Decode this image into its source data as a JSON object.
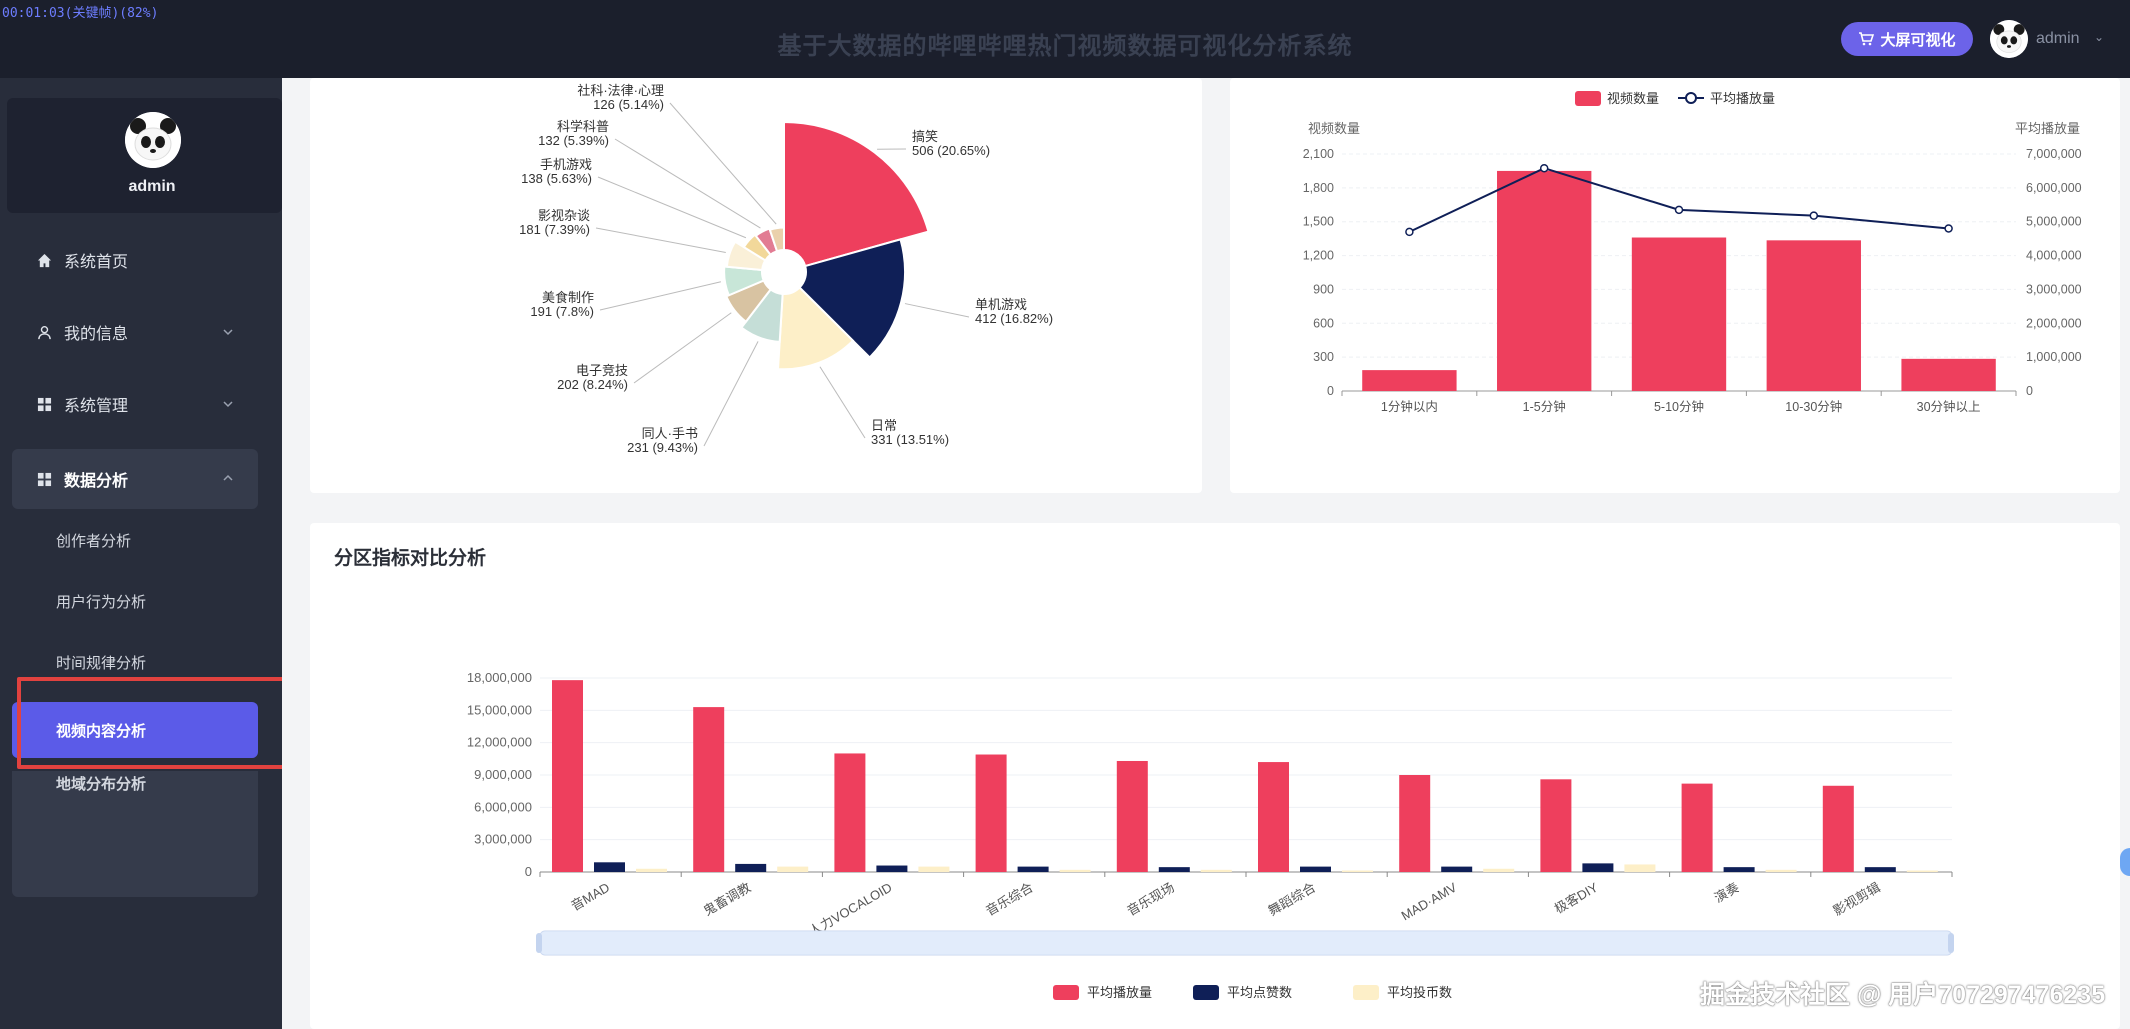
{
  "recording_label": "00:01:03(关键帧)(82%)",
  "header": {
    "title": "基于大数据的哔哩哔哩热门视频数据可视化分析系统",
    "bigscreen_label": "大屏可视化",
    "username": "admin"
  },
  "sidebar": {
    "profile_name": "admin",
    "items": [
      {
        "label": "系统首页",
        "icon": "home-icon"
      },
      {
        "label": "我的信息",
        "icon": "user-icon"
      },
      {
        "label": "系统管理",
        "icon": "grid-icon"
      },
      {
        "label": "数据分析",
        "icon": "grid-icon"
      }
    ],
    "sub_items": [
      "创作者分析",
      "用户行为分析",
      "时间规律分析",
      "视频内容分析",
      "地域分布分析"
    ],
    "active_sub": "视频内容分析"
  },
  "colors": {
    "accent": "#5b5be8",
    "pink": "#ee3f5d",
    "navy": "#0f1f57",
    "cream": "#fdefc8",
    "highlight_box": "#e2423f"
  },
  "chart_data": [
    {
      "type": "pie",
      "chart_kind": "rose",
      "categories": [
        "搞笑",
        "单机游戏",
        "日常",
        "同人·手书",
        "电子竞技",
        "美食制作",
        "影视杂谈",
        "手机游戏",
        "科学科普",
        "社科·法律·心理"
      ],
      "values": [
        506,
        412,
        331,
        231,
        202,
        191,
        181,
        138,
        132,
        126
      ],
      "labels": [
        "506 (20.65%)",
        "412 (16.82%)",
        "331 (13.51%)",
        "231 (9.43%)",
        "202 (8.24%)",
        "191 (7.8%)",
        "181 (7.39%)",
        "138 (5.63%)",
        "132 (5.39%)",
        "126 (5.14%)"
      ],
      "colors": [
        "#ee3f5d",
        "#0f1f57",
        "#fdefc8",
        "#c5ded7",
        "#d8c3a2",
        "#c8e6d8",
        "#faf0d8",
        "#f2d89a",
        "#e27c93",
        "#ead1ac"
      ]
    },
    {
      "type": "bar",
      "categories": [
        "1分钟以内",
        "1-5分钟",
        "5-10分钟",
        "10-30分钟",
        "30分钟以上"
      ],
      "series": [
        {
          "name": "视频数量",
          "values": [
            185,
            1950,
            1360,
            1335,
            285
          ],
          "axis": "left",
          "color": "#ee3f5d"
        },
        {
          "name": "平均播放量",
          "type": "line",
          "values": [
            4700000,
            6580000,
            5350000,
            5180000,
            4800000
          ],
          "axis": "right",
          "color": "#0f1f57"
        }
      ],
      "ylabel": "视频数量",
      "y2label": "平均播放量",
      "ylim": [
        0,
        2100
      ],
      "yticks": [
        "0",
        "300",
        "600",
        "900",
        "1,200",
        "1,500",
        "1,800",
        "2,100"
      ],
      "y2lim": [
        0,
        7000000
      ],
      "y2ticks": [
        "0",
        "1,000,000",
        "2,000,000",
        "3,000,000",
        "4,000,000",
        "5,000,000",
        "6,000,000",
        "7,000,000"
      ],
      "legend_position": "top-center"
    },
    {
      "type": "bar",
      "title": "分区指标对比分析",
      "categories": [
        "音MAD",
        "鬼畜调教",
        "人力VOCALOID",
        "音乐综合",
        "音乐现场",
        "舞蹈综合",
        "MAD·AMV",
        "极客DIY",
        "演奏",
        "影视剪辑"
      ],
      "series": [
        {
          "name": "平均播放量",
          "values": [
            17800000,
            15300000,
            11000000,
            10900000,
            10300000,
            10200000,
            9000000,
            8600000,
            8200000,
            8000000
          ],
          "color": "#ee3f5d"
        },
        {
          "name": "平均点赞数",
          "values": [
            900000,
            750000,
            600000,
            500000,
            450000,
            500000,
            500000,
            800000,
            450000,
            450000
          ],
          "color": "#0f1f57"
        },
        {
          "name": "平均投币数",
          "values": [
            300000,
            500000,
            500000,
            200000,
            200000,
            100000,
            300000,
            700000,
            200000,
            100000
          ],
          "color": "#fdefc8"
        }
      ],
      "ylim": [
        0,
        18000000
      ],
      "yticks": [
        "0",
        "3,000,000",
        "6,000,000",
        "9,000,000",
        "12,000,000",
        "15,000,000",
        "18,000,000"
      ],
      "legend_position": "bottom-center"
    }
  ],
  "watermark": "掘金技术社区 @ 用户707297476235"
}
